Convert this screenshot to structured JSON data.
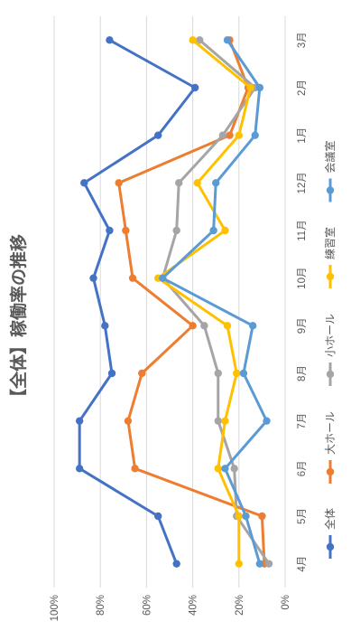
{
  "chart_data": {
    "type": "line",
    "title": "【全体】稼働率の推移",
    "xlabel": "",
    "ylabel": "",
    "categories": [
      "4月",
      "5月",
      "6月",
      "7月",
      "8月",
      "9月",
      "10月",
      "11月",
      "12月",
      "1月",
      "2月",
      "3月"
    ],
    "yticks": [
      "0%",
      "20%",
      "40%",
      "60%",
      "80%",
      "100%"
    ],
    "ylim": [
      0,
      1
    ],
    "grid": true,
    "legend": "bottom",
    "series": [
      {
        "name": "全体",
        "color": "#4472C4",
        "values": [
          0.47,
          0.55,
          0.89,
          0.89,
          0.75,
          0.78,
          0.83,
          0.76,
          0.87,
          0.55,
          0.39,
          0.76
        ]
      },
      {
        "name": "大ホール",
        "color": "#ED7D31",
        "values": [
          0.09,
          0.1,
          0.65,
          0.68,
          0.62,
          0.4,
          0.66,
          0.69,
          0.72,
          0.24,
          0.16,
          0.24
        ]
      },
      {
        "name": "小ホール",
        "color": "#A5A5A5",
        "values": [
          0.07,
          0.21,
          0.22,
          0.29,
          0.29,
          0.35,
          0.53,
          0.47,
          0.46,
          0.27,
          0.13,
          0.37
        ]
      },
      {
        "name": "練習室",
        "color": "#FFC000",
        "values": [
          0.2,
          0.2,
          0.29,
          0.26,
          0.21,
          0.25,
          0.55,
          0.26,
          0.38,
          0.2,
          0.15,
          0.4
        ]
      },
      {
        "name": "会議室",
        "color": "#5B9BD5",
        "values": [
          0.11,
          0.17,
          0.26,
          0.08,
          0.18,
          0.14,
          0.53,
          0.31,
          0.3,
          0.13,
          0.11,
          0.25
        ]
      }
    ]
  }
}
